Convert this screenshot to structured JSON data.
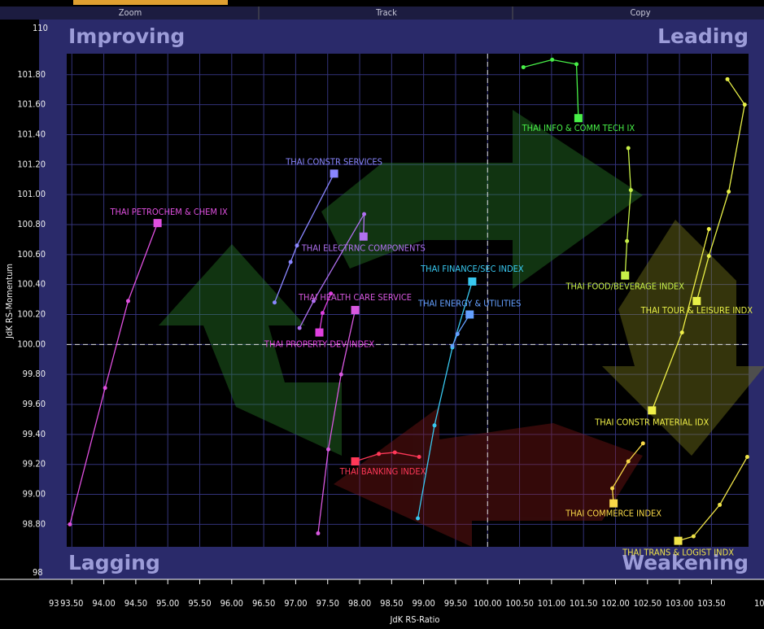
{
  "toolbar": [
    "Zoom",
    "Track",
    "Copy"
  ],
  "chart_data": {
    "type": "rrg",
    "x_label": "JdK RS-Ratio",
    "y_label": "JdK RS-Momentum",
    "axis_end_labels": {
      "y_top": "110",
      "y_bottom": "98",
      "x_left": "93",
      "x_right": "10"
    },
    "quadrants": {
      "top_left": "Improving",
      "top_right": "Leading",
      "bottom_left": "Lagging",
      "bottom_right": "Weakening"
    },
    "xlim": [
      93.42,
      104.08
    ],
    "ylim": [
      98.65,
      101.94
    ],
    "xticks": [
      {
        "value": 93.5,
        "label": "93.50"
      },
      {
        "value": 94,
        "label": "94.00"
      },
      {
        "value": 94.5,
        "label": "94.50"
      },
      {
        "value": 95,
        "label": "95.00"
      },
      {
        "value": 95.5,
        "label": "95.50"
      },
      {
        "value": 96,
        "label": "96.00"
      },
      {
        "value": 96.5,
        "label": "96.50"
      },
      {
        "value": 97,
        "label": "97.00"
      },
      {
        "value": 97.5,
        "label": "97.50"
      },
      {
        "value": 98,
        "label": "98.00"
      },
      {
        "value": 98.5,
        "label": "98.50"
      },
      {
        "value": 99,
        "label": "99.00"
      },
      {
        "value": 99.5,
        "label": "99.50"
      },
      {
        "value": 100,
        "label": "100.00"
      },
      {
        "value": 100.5,
        "label": "100.50"
      },
      {
        "value": 101,
        "label": "101.00"
      },
      {
        "value": 101.5,
        "label": "101.50"
      },
      {
        "value": 102,
        "label": "102.00"
      },
      {
        "value": 102.5,
        "label": "102.50"
      },
      {
        "value": 103,
        "label": "103.00"
      },
      {
        "value": 103.5,
        "label": "103.50"
      }
    ],
    "yticks": [
      {
        "value": 98.8,
        "label": "98.80"
      },
      {
        "value": 99,
        "label": "99.00"
      },
      {
        "value": 99.2,
        "label": "99.20"
      },
      {
        "value": 99.4,
        "label": "99.40"
      },
      {
        "value": 99.6,
        "label": "99.60"
      },
      {
        "value": 99.8,
        "label": "99.80"
      },
      {
        "value": 100,
        "label": "100.00"
      },
      {
        "value": 100.2,
        "label": "100.20"
      },
      {
        "value": 100.4,
        "label": "100.40"
      },
      {
        "value": 100.6,
        "label": "100.60"
      },
      {
        "value": 100.8,
        "label": "100.80"
      },
      {
        "value": 101,
        "label": "101.00"
      },
      {
        "value": 101.2,
        "label": "101.20"
      },
      {
        "value": 101.4,
        "label": "101.40"
      },
      {
        "value": 101.6,
        "label": "101.60"
      },
      {
        "value": 101.8,
        "label": "101.80"
      }
    ],
    "grid": true,
    "center": {
      "x": 100,
      "y": 100
    },
    "series": [
      {
        "name": "THAI PETROCHEM & CHEM IX",
        "color": "#e050e0",
        "x": [
          93.47,
          94.02,
          94.38,
          94.84
        ],
        "values": [
          98.8,
          99.71,
          100.29,
          100.81
        ]
      },
      {
        "name": "THAI CONSTR SERVICES",
        "color": "#8a86ff",
        "x": [
          96.67,
          96.92,
          97.02,
          97.6
        ],
        "values": [
          100.28,
          100.55,
          100.66,
          101.14
        ]
      },
      {
        "name": "THAI ELECTRNC COMPONENTS",
        "color": "#b070f0",
        "x": [
          97.06,
          97.28,
          98.07,
          98.06
        ],
        "values": [
          100.11,
          100.29,
          100.87,
          100.72
        ]
      },
      {
        "name": "THAI HEALTH CARE SERVICE",
        "color": "#d858e0",
        "x": [
          97.35,
          97.51,
          97.71,
          97.93
        ],
        "values": [
          98.74,
          99.3,
          99.8,
          100.23
        ]
      },
      {
        "name": "THAI PROPERTY DEV INDEX",
        "color": "#e040e0",
        "x": [
          97.55,
          97.42,
          97.37
        ],
        "values": [
          100.34,
          100.21,
          100.08
        ]
      },
      {
        "name": "THAI BANKING INDEX",
        "color": "#ff3858",
        "x": [
          98.93,
          98.55,
          98.3,
          97.93
        ],
        "values": [
          99.25,
          99.28,
          99.27,
          99.22
        ]
      },
      {
        "name": "THAI FINANCE/SEC INDEX",
        "color": "#38c8f0",
        "x": [
          98.91,
          99.17,
          99.45,
          99.76
        ],
        "values": [
          98.84,
          99.46,
          99.98,
          100.42
        ]
      },
      {
        "name": "THAI ENERGY & UTILITIES",
        "color": "#64a0ff",
        "x": [
          99.45,
          99.53,
          99.72
        ],
        "values": [
          99.99,
          100.07,
          100.2
        ]
      },
      {
        "name": "THAI INFO & COMM TECH IX",
        "color": "#48f048",
        "x": [
          100.56,
          101.01,
          101.39,
          101.42
        ],
        "values": [
          101.85,
          101.9,
          101.87,
          101.51
        ]
      },
      {
        "name": "THAI FOOD/BEVERAGE INDEX",
        "color": "#c8f048",
        "x": [
          102.2,
          102.24,
          102.18,
          102.15
        ],
        "values": [
          101.31,
          101.03,
          100.69,
          100.46
        ]
      },
      {
        "name": "THAI TOUR & LEISURE INDX",
        "color": "#e8f048",
        "x": [
          103.75,
          104.02,
          103.77,
          103.46,
          103.27
        ],
        "values": [
          101.77,
          101.6,
          101.02,
          100.59,
          100.29
        ]
      },
      {
        "name": "THAI CONSTR MATERIAL IDX",
        "color": "#f0f048",
        "x": [
          103.46,
          103.04,
          102.57
        ],
        "values": [
          100.77,
          100.08,
          99.56
        ]
      },
      {
        "name": "THAI COMMERCE INDEX",
        "color": "#f8d848",
        "x": [
          102.43,
          102.2,
          101.95,
          101.97
        ],
        "values": [
          99.34,
          99.22,
          99.04,
          98.94
        ]
      },
      {
        "name": "THAI TRANS & LOGIST INDX",
        "color": "#f0e448",
        "x": [
          104.06,
          103.63,
          103.22,
          102.98
        ],
        "values": [
          99.25,
          98.93,
          98.72,
          98.69
        ]
      }
    ]
  }
}
